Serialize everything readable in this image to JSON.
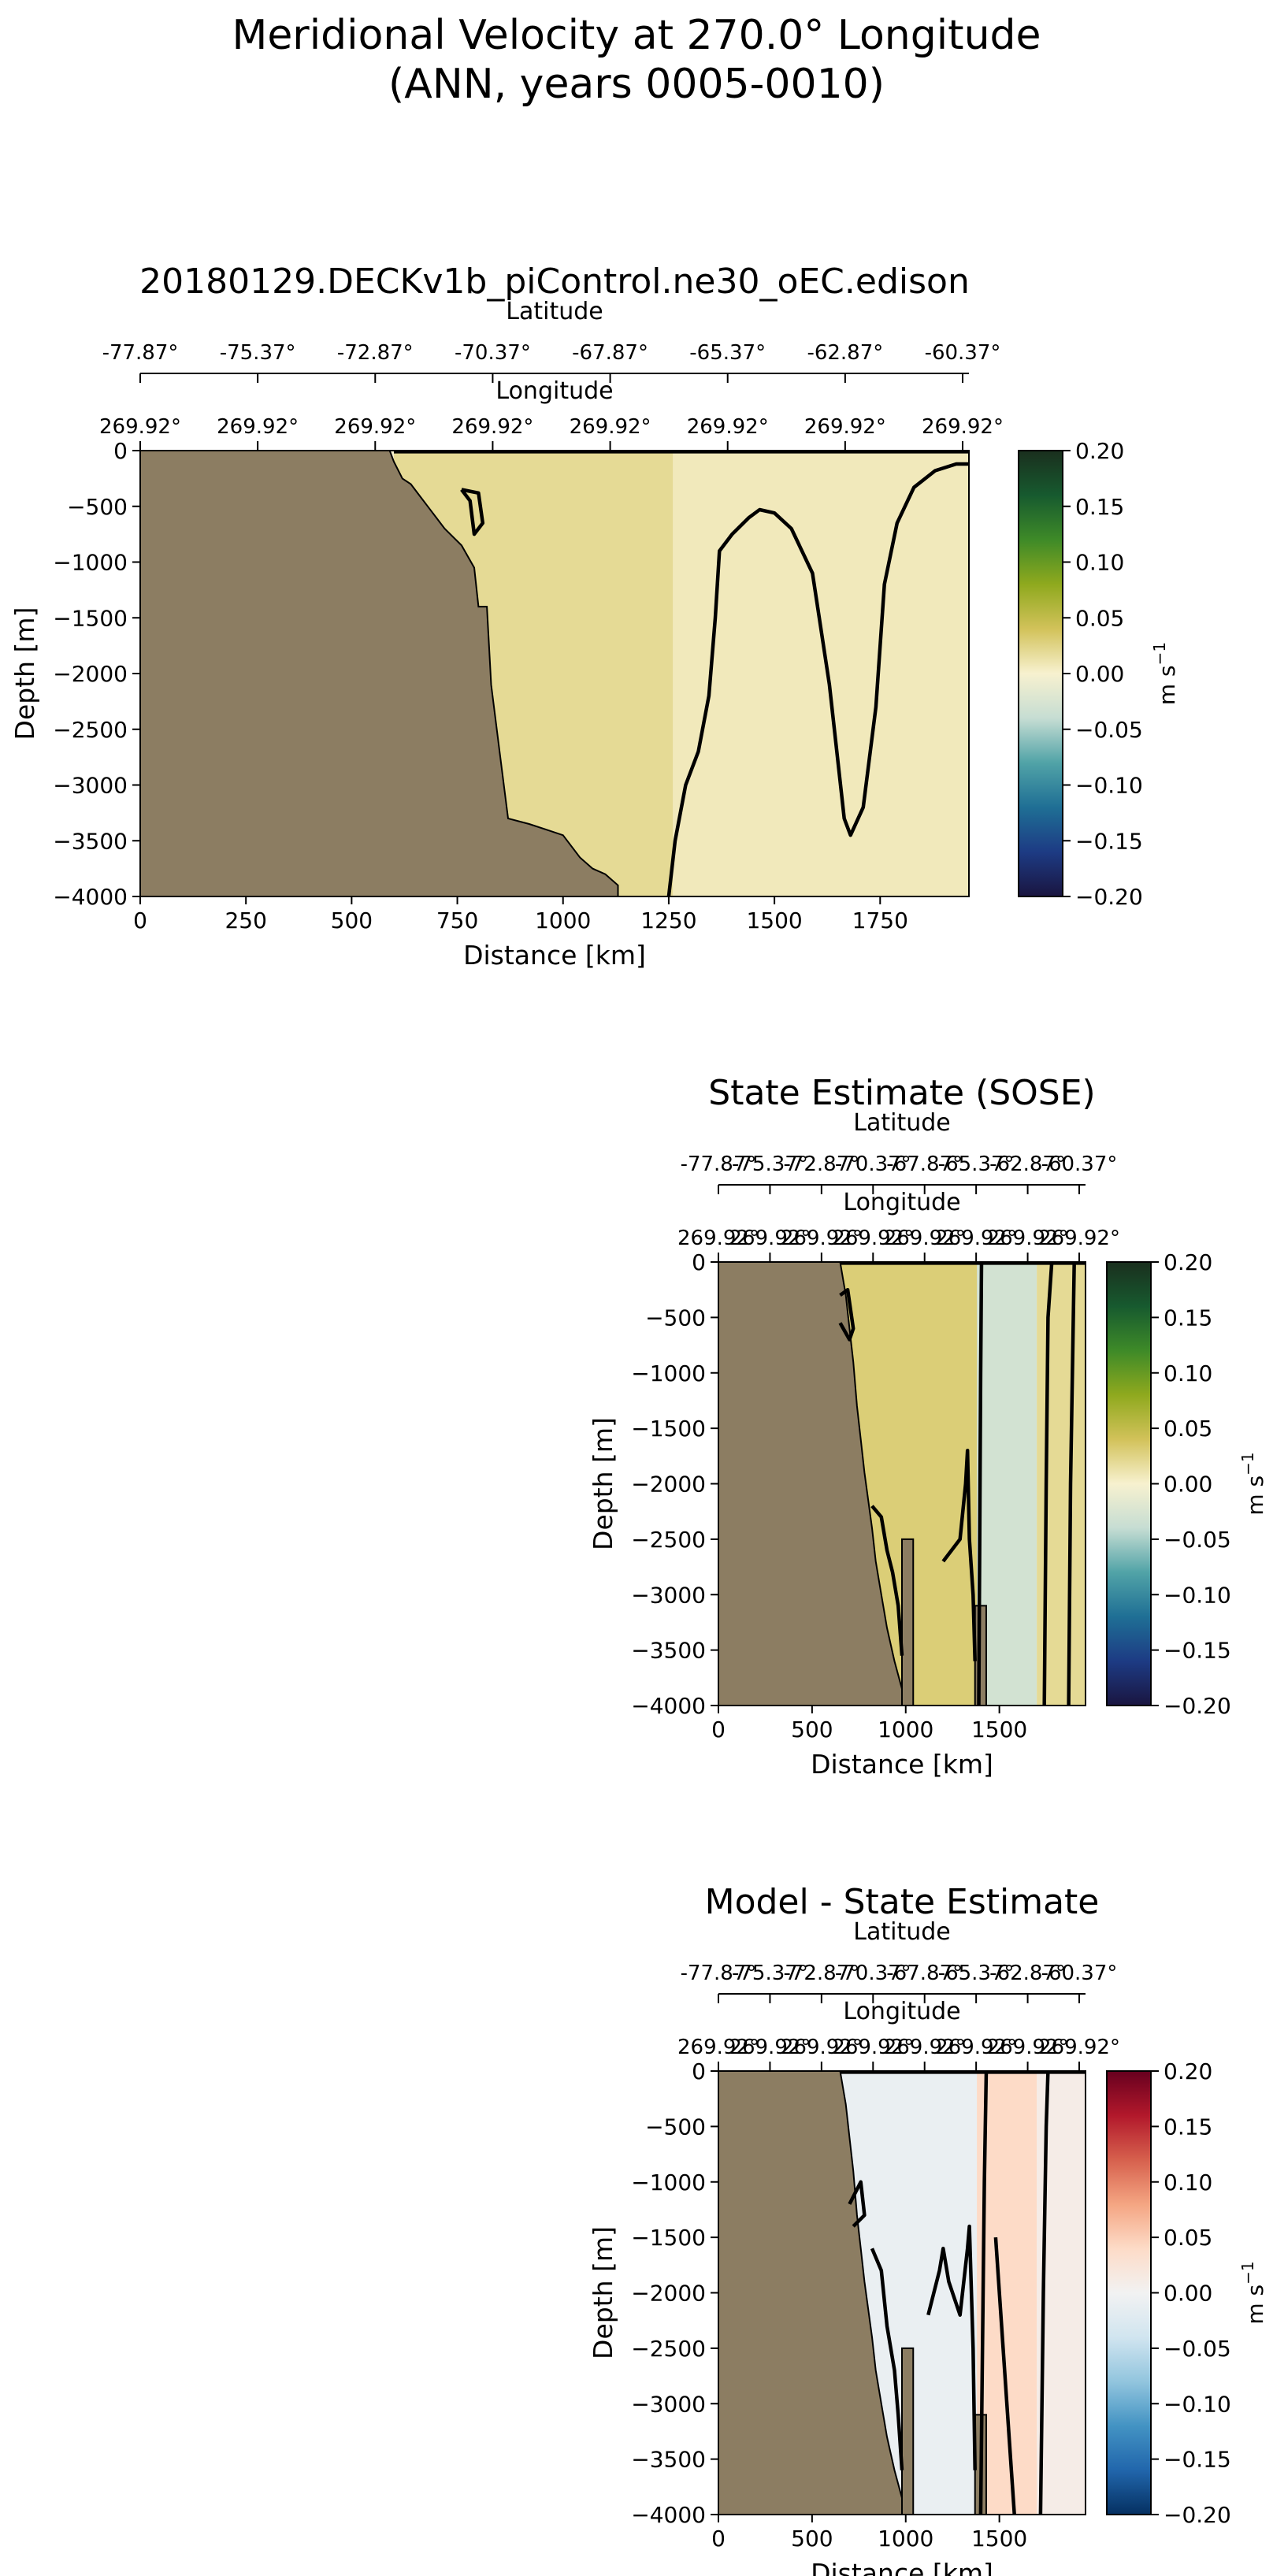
{
  "figure": {
    "title_line1": "Meridional Velocity at 270.0° Longitude",
    "title_line2": "(ANN, years 0005-0010)"
  },
  "chart_data": [
    {
      "type": "heatmap",
      "title": "20180129.DECKv1b_piControl.ne30_oEC.edison",
      "xlabel": "Distance [km]",
      "ylabel": "Depth [m]",
      "xlim": [
        0,
        1960
      ],
      "ylim": [
        -4000,
        0
      ],
      "x_ticks": [
        0,
        250,
        500,
        750,
        1000,
        1250,
        1500,
        1750
      ],
      "y_ticks": [
        0,
        -500,
        -1000,
        -1500,
        -2000,
        -2500,
        -3000,
        -3500,
        -4000
      ],
      "lat_axis_label": "Latitude",
      "lat_ticks": [
        "-77.87°",
        "-75.37°",
        "-72.87°",
        "-70.37°",
        "-67.87°",
        "-65.37°",
        "-62.87°",
        "-60.37°"
      ],
      "lon_axis_label": "Longitude",
      "lon_ticks": [
        "269.92°",
        "269.92°",
        "269.92°",
        "269.92°",
        "269.92°",
        "269.92°",
        "269.92°",
        "269.92°"
      ],
      "colorbar": {
        "label": "m s",
        "label_exp": "−1",
        "ticks": [
          "0.20",
          "0.15",
          "0.10",
          "0.05",
          "0.00",
          "−0.05",
          "−0.10",
          "−0.15",
          "−0.20"
        ],
        "colors": [
          "#1a2f1e",
          "#175a2f",
          "#3e8a28",
          "#8fa91e",
          "#d2c25a",
          "#f7f1cf",
          "#c6ddd3",
          "#51a3a7",
          "#1f6f95",
          "#1d3b84",
          "#1a1540"
        ],
        "vmin": -0.2,
        "vmax": 0.2
      },
      "land_color": "#8c7d62",
      "bathymetry": [
        [
          0,
          0
        ],
        [
          590,
          0
        ],
        [
          600,
          -100
        ],
        [
          620,
          -250
        ],
        [
          640,
          -300
        ],
        [
          660,
          -400
        ],
        [
          680,
          -500
        ],
        [
          700,
          -600
        ],
        [
          720,
          -700
        ],
        [
          760,
          -850
        ],
        [
          790,
          -1050
        ],
        [
          800,
          -1400
        ],
        [
          820,
          -1400
        ],
        [
          830,
          -2100
        ],
        [
          850,
          -2700
        ],
        [
          870,
          -3300
        ],
        [
          920,
          -3350
        ],
        [
          960,
          -3400
        ],
        [
          1000,
          -3450
        ],
        [
          1040,
          -3650
        ],
        [
          1070,
          -3750
        ],
        [
          1100,
          -3800
        ],
        [
          1130,
          -3900
        ],
        [
          1130,
          -4000
        ],
        [
          0,
          -4000
        ]
      ],
      "water_fills": [
        {
          "x0": 600,
          "x1": 1260,
          "value": 0.02
        },
        {
          "x0": 1260,
          "x1": 1960,
          "value": 0.007
        }
      ],
      "contours": [
        [
          [
            1250,
            -4000
          ],
          [
            1265,
            -3500
          ],
          [
            1290,
            -3000
          ],
          [
            1320,
            -2700
          ],
          [
            1345,
            -2200
          ],
          [
            1360,
            -1500
          ],
          [
            1370,
            -900
          ],
          [
            1400,
            -750
          ],
          [
            1440,
            -600
          ],
          [
            1465,
            -530
          ],
          [
            1500,
            -560
          ],
          [
            1540,
            -700
          ],
          [
            1590,
            -1100
          ],
          [
            1630,
            -2100
          ],
          [
            1665,
            -3300
          ],
          [
            1680,
            -3450
          ],
          [
            1710,
            -3200
          ],
          [
            1740,
            -2300
          ],
          [
            1760,
            -1200
          ],
          [
            1790,
            -650
          ],
          [
            1830,
            -330
          ],
          [
            1880,
            -180
          ],
          [
            1930,
            -120
          ],
          [
            1960,
            -120
          ]
        ],
        [
          [
            600,
            -10
          ],
          [
            1960,
            -10
          ]
        ],
        [
          [
            760,
            -350
          ],
          [
            800,
            -380
          ],
          [
            810,
            -650
          ],
          [
            790,
            -750
          ],
          [
            780,
            -450
          ],
          [
            760,
            -350
          ]
        ]
      ]
    },
    {
      "type": "heatmap",
      "title": "State Estimate (SOSE)",
      "xlabel": "Distance [km]",
      "ylabel": "Depth [m]",
      "xlim": [
        0,
        1960
      ],
      "ylim": [
        -4000,
        0
      ],
      "x_ticks": [
        0,
        500,
        1000,
        1500
      ],
      "y_ticks": [
        0,
        -500,
        -1000,
        -1500,
        -2000,
        -2500,
        -3000,
        -3500,
        -4000
      ],
      "lat_axis_label": "Latitude",
      "lat_ticks": [
        "-77.87°",
        "-75.37°",
        "-72.87°",
        "-70.37°",
        "-67.87°",
        "-65.37°",
        "-62.87°",
        "-60.37°"
      ],
      "lon_axis_label": "Longitude",
      "lon_ticks": [
        "269.92°",
        "269.92°",
        "269.92°",
        "269.92°",
        "269.92°",
        "269.92°",
        "269.92°",
        "269.92°"
      ],
      "colorbar": {
        "label": "m s",
        "label_exp": "−1",
        "ticks": [
          "0.20",
          "0.15",
          "0.10",
          "0.05",
          "0.00",
          "−0.05",
          "−0.10",
          "−0.15",
          "−0.20"
        ],
        "colors": [
          "#1a2f1e",
          "#175a2f",
          "#3e8a28",
          "#8fa91e",
          "#d2c25a",
          "#f7f1cf",
          "#c6ddd3",
          "#51a3a7",
          "#1f6f95",
          "#1d3b84",
          "#1a1540"
        ],
        "vmin": -0.2,
        "vmax": 0.2
      },
      "land_color": "#8c7d62",
      "bathymetry": [
        [
          0,
          0
        ],
        [
          650,
          0
        ],
        [
          680,
          -300
        ],
        [
          700,
          -600
        ],
        [
          720,
          -900
        ],
        [
          740,
          -1300
        ],
        [
          760,
          -1600
        ],
        [
          780,
          -1900
        ],
        [
          800,
          -2150
        ],
        [
          820,
          -2400
        ],
        [
          840,
          -2700
        ],
        [
          870,
          -3000
        ],
        [
          900,
          -3300
        ],
        [
          940,
          -3600
        ],
        [
          980,
          -3850
        ],
        [
          1000,
          -4000
        ],
        [
          0,
          -4000
        ]
      ],
      "water_fills": [
        {
          "x0": 650,
          "x1": 1380,
          "value": 0.03
        },
        {
          "x0": 1380,
          "x1": 1700,
          "value": -0.03
        },
        {
          "x0": 1700,
          "x1": 1960,
          "value": 0.02
        }
      ],
      "land_pillars": [
        {
          "x0": 980,
          "x1": 1040,
          "top": -2500
        },
        {
          "x0": 1370,
          "x1": 1430,
          "top": -3100
        }
      ],
      "contours": [
        [
          [
            1390,
            -4000
          ],
          [
            1395,
            -2500
          ],
          [
            1400,
            -1000
          ],
          [
            1405,
            0
          ]
        ],
        [
          [
            1740,
            -4000
          ],
          [
            1750,
            -2000
          ],
          [
            1760,
            -500
          ],
          [
            1780,
            0
          ]
        ],
        [
          [
            1870,
            -4000
          ],
          [
            1880,
            -2000
          ],
          [
            1900,
            0
          ]
        ],
        [
          [
            650,
            -10
          ],
          [
            1960,
            -10
          ]
        ],
        [
          [
            820,
            -2200
          ],
          [
            870,
            -2300
          ],
          [
            900,
            -2600
          ],
          [
            930,
            -2800
          ],
          [
            960,
            -3100
          ],
          [
            980,
            -3550
          ]
        ],
        [
          [
            1200,
            -2700
          ],
          [
            1290,
            -2500
          ],
          [
            1320,
            -2000
          ],
          [
            1330,
            -1700
          ],
          [
            1340,
            -2500
          ],
          [
            1360,
            -3000
          ],
          [
            1370,
            -3600
          ]
        ],
        [
          [
            650,
            -300
          ],
          [
            690,
            -250
          ],
          [
            720,
            -600
          ],
          [
            700,
            -700
          ],
          [
            650,
            -550
          ]
        ]
      ]
    },
    {
      "type": "heatmap",
      "title": "Model - State Estimate",
      "xlabel": "Distance [km]",
      "ylabel": "Depth [m]",
      "xlim": [
        0,
        1960
      ],
      "ylim": [
        -4000,
        0
      ],
      "x_ticks": [
        0,
        500,
        1000,
        1500
      ],
      "y_ticks": [
        0,
        -500,
        -1000,
        -1500,
        -2000,
        -2500,
        -3000,
        -3500,
        -4000
      ],
      "lat_axis_label": "Latitude",
      "lat_ticks": [
        "-77.87°",
        "-75.37°",
        "-72.87°",
        "-70.37°",
        "-67.87°",
        "-65.37°",
        "-62.87°",
        "-60.37°"
      ],
      "lon_axis_label": "Longitude",
      "lon_ticks": [
        "269.92°",
        "269.92°",
        "269.92°",
        "269.92°",
        "269.92°",
        "269.92°",
        "269.92°",
        "269.92°"
      ],
      "colorbar": {
        "label": "m s",
        "label_exp": "−1",
        "ticks": [
          "0.20",
          "0.15",
          "0.10",
          "0.05",
          "0.00",
          "−0.05",
          "−0.10",
          "−0.15",
          "−0.20"
        ],
        "colors": [
          "#67001f",
          "#b2182b",
          "#d6604d",
          "#f4a582",
          "#fddbc7",
          "#f2f2f2",
          "#d1e5f0",
          "#92c5de",
          "#4393c3",
          "#2166ac",
          "#053061"
        ],
        "vmin": -0.2,
        "vmax": 0.2
      },
      "land_color": "#8c7d62",
      "bathymetry": [
        [
          0,
          0
        ],
        [
          650,
          0
        ],
        [
          680,
          -300
        ],
        [
          700,
          -600
        ],
        [
          720,
          -900
        ],
        [
          740,
          -1300
        ],
        [
          760,
          -1600
        ],
        [
          780,
          -1900
        ],
        [
          800,
          -2150
        ],
        [
          820,
          -2400
        ],
        [
          840,
          -2700
        ],
        [
          870,
          -3000
        ],
        [
          900,
          -3300
        ],
        [
          940,
          -3600
        ],
        [
          980,
          -3850
        ],
        [
          1000,
          -4000
        ],
        [
          0,
          -4000
        ]
      ],
      "water_fills": [
        {
          "x0": 650,
          "x1": 1380,
          "value": -0.01
        },
        {
          "x0": 1380,
          "x1": 1700,
          "value": 0.04
        },
        {
          "x0": 1700,
          "x1": 1960,
          "value": 0.01
        }
      ],
      "land_pillars": [
        {
          "x0": 980,
          "x1": 1040,
          "top": -2500
        },
        {
          "x0": 1370,
          "x1": 1430,
          "top": -3100
        }
      ],
      "contours": [
        [
          [
            1400,
            -4000
          ],
          [
            1410,
            -2500
          ],
          [
            1420,
            -1000
          ],
          [
            1430,
            0
          ]
        ],
        [
          [
            1720,
            -4000
          ],
          [
            1735,
            -2000
          ],
          [
            1750,
            -500
          ],
          [
            1760,
            0
          ]
        ],
        [
          [
            650,
            -10
          ],
          [
            1960,
            -10
          ]
        ],
        [
          [
            820,
            -1600
          ],
          [
            870,
            -1800
          ],
          [
            900,
            -2300
          ],
          [
            940,
            -2700
          ],
          [
            960,
            -3100
          ],
          [
            980,
            -3600
          ]
        ],
        [
          [
            1120,
            -2200
          ],
          [
            1180,
            -1800
          ],
          [
            1200,
            -1600
          ],
          [
            1230,
            -1900
          ],
          [
            1290,
            -2200
          ],
          [
            1330,
            -1600
          ],
          [
            1340,
            -1400
          ],
          [
            1360,
            -2500
          ],
          [
            1370,
            -3600
          ]
        ],
        [
          [
            1480,
            -1500
          ],
          [
            1520,
            -2500
          ],
          [
            1560,
            -3500
          ],
          [
            1580,
            -4000
          ]
        ],
        [
          [
            700,
            -1200
          ],
          [
            760,
            -1000
          ],
          [
            780,
            -1300
          ],
          [
            720,
            -1400
          ]
        ]
      ]
    }
  ]
}
